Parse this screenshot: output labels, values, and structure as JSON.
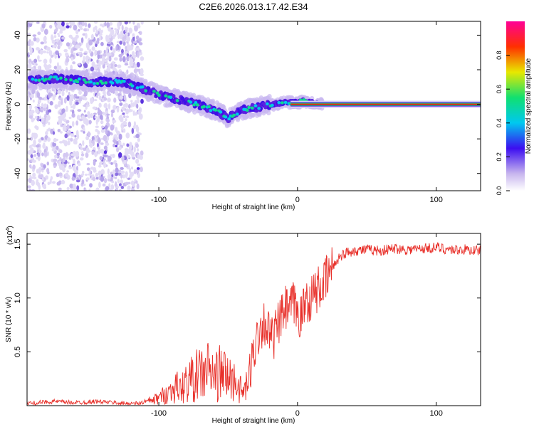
{
  "title": "C2E6.2026.013.17.42.E34",
  "chart_data": [
    {
      "type": "heatmap",
      "name": "spectrogram",
      "xlabel": "Height of straight line (km)",
      "ylabel": "Frequency (Hz)",
      "xlim": [
        -195,
        132
      ],
      "ylim": [
        -50,
        48
      ],
      "x_ticks": [
        -100,
        0,
        100
      ],
      "x_tick_labels": [
        "-100",
        "0",
        "100"
      ],
      "y_ticks": [
        -40,
        -20,
        0,
        20,
        40
      ],
      "y_tick_labels": [
        "-40",
        "-20",
        "0",
        "20",
        "40"
      ],
      "noise_region_x": [
        -195,
        -112
      ],
      "ridge": {
        "x": [
          -193,
          -175,
          -160,
          -150,
          -140,
          -128,
          -118,
          -108,
          -98,
          -88,
          -78,
          -68,
          -58,
          -50,
          -44,
          -38,
          -32,
          -25,
          -18,
          -10,
          -5,
          0,
          5,
          10,
          20,
          40,
          60,
          80,
          100,
          120,
          132
        ],
        "y": [
          14,
          15,
          14,
          13,
          13,
          13,
          11,
          8,
          5,
          3,
          1,
          -1,
          -4,
          -8,
          -5,
          -3,
          -2,
          -1,
          0,
          1,
          1,
          1,
          2,
          1,
          0,
          0,
          0,
          0,
          0,
          0,
          0
        ]
      },
      "colorbar": {
        "label": "Normalized spectral amplitude",
        "range": [
          0,
          1
        ],
        "ticks": [
          0.0,
          0.2,
          0.4,
          0.6,
          0.8
        ],
        "tick_labels": [
          "0.0",
          "0.2",
          "0.4",
          "0.6",
          "0.8"
        ]
      }
    },
    {
      "type": "line",
      "name": "snr",
      "xlabel": "Height of straight line (km)",
      "ylabel": "SNR (10 * v/v)",
      "y_multiplier": "(x10",
      "y_multiplier_exp": "4",
      "y_multiplier_close": ")",
      "xlim": [
        -195,
        132
      ],
      "ylim": [
        0,
        1.6
      ],
      "x_ticks": [
        -100,
        0,
        100
      ],
      "x_tick_labels": [
        "-100",
        "0",
        "100"
      ],
      "y_ticks": [
        0.5,
        1.0,
        1.5
      ],
      "y_tick_labels": [
        "0.5",
        "1.0",
        "1.5"
      ],
      "color": "#e8302a",
      "series": [
        {
          "name": "SNR",
          "x": [
            -195,
            -185,
            -175,
            -165,
            -155,
            -145,
            -135,
            -125,
            -115,
            -108,
            -102,
            -96,
            -92,
            -88,
            -84,
            -80,
            -76,
            -72,
            -68,
            -64,
            -60,
            -56,
            -52,
            -48,
            -44,
            -40,
            -36,
            -33,
            -30,
            -27,
            -24,
            -21,
            -18,
            -15,
            -12,
            -9,
            -6,
            -3,
            0,
            3,
            6,
            9,
            12,
            15,
            18,
            21,
            24,
            27,
            30,
            35,
            40,
            50,
            60,
            70,
            80,
            90,
            100,
            110,
            120,
            132
          ],
          "values": [
            0.02,
            0.03,
            0.04,
            0.03,
            0.03,
            0.04,
            0.03,
            0.02,
            0.02,
            0.04,
            0.06,
            0.1,
            0.13,
            0.18,
            0.15,
            0.22,
            0.25,
            0.28,
            0.3,
            0.34,
            0.26,
            0.3,
            0.28,
            0.24,
            0.22,
            0.12,
            0.18,
            0.4,
            0.6,
            0.72,
            0.78,
            0.7,
            0.6,
            0.72,
            0.8,
            0.9,
            0.88,
            0.95,
            0.86,
            0.82,
            1.0,
            0.98,
            1.05,
            1.08,
            1.12,
            1.18,
            1.26,
            1.32,
            1.38,
            1.42,
            1.44,
            1.45,
            1.44,
            1.46,
            1.45,
            1.46,
            1.47,
            1.45,
            1.45,
            1.44
          ]
        }
      ]
    }
  ]
}
